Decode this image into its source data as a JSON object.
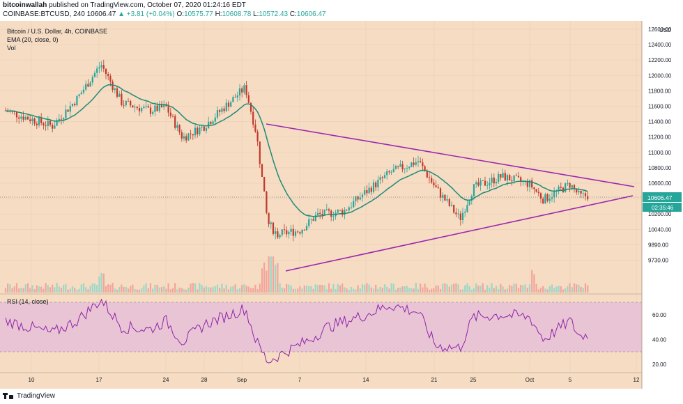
{
  "header": {
    "author": "bitcoinwallah",
    "published": "published on TradingView.com, October 07, 2020 01:24:16 EDT",
    "symbol": "COINBASE:BTCUSD, 240",
    "last": "10606.47",
    "change": "+3.81 (+0.04%)",
    "open_label": "O:",
    "open": "10575.77",
    "high_label": "H:",
    "high": "10608.78",
    "low_label": "L:",
    "low": "10572.43",
    "close_label": "C:",
    "close": "10606.47"
  },
  "legend": {
    "title": "Bitcoin / U.S. Dollar, 4h, COINBASE",
    "ema": "EMA (20, close, 0)",
    "vol": "Vol",
    "rsi": "RSI (14, close)"
  },
  "price_axis": {
    "currency": "USD",
    "ticks": [
      "12600.00",
      "12400.00",
      "12200.00",
      "12000.00",
      "11800.00",
      "11600.00",
      "11400.00",
      "11200.00",
      "11000.00",
      "10800.00",
      "10600.00",
      "10400.00",
      "10200.00",
      "10040.00",
      "9890.00",
      "9730.00"
    ],
    "last_price_label": "10606.47",
    "countdown_label": "02:35:46"
  },
  "rsi_axis": {
    "ticks": [
      "60.00",
      "40.00",
      "20.00"
    ]
  },
  "time_axis": {
    "labels": [
      "10",
      "17",
      "24",
      "28",
      "Sep",
      "7",
      "14",
      "21",
      "25",
      "Oct",
      "5",
      "12"
    ]
  },
  "colors": {
    "background": "#f5dcc3",
    "up": "#26a69a",
    "down": "#c1392b",
    "ema": "#1e8a78",
    "triangle": "#9c27b0",
    "rsi": "#8e24aa",
    "rsi_band": "#e9c4d4"
  },
  "footer": {
    "brand": "TradingView"
  },
  "chart_data": [
    {
      "type": "candlestick",
      "title": "Bitcoin / U.S. Dollar, 4h, COINBASE",
      "ylabel": "USD",
      "ylim": [
        9650,
        12750
      ],
      "indicators": [
        "EMA (20, close, 0)",
        "Vol"
      ],
      "annotations": [
        "symmetrical triangle: upper trendline ~11470 (Sep 2) to ~10730 (Oct 8)",
        "symmetrical triangle: lower trendline ~9830 (Sep 5) to ~10620 (Oct 8)"
      ],
      "trend_points": [
        {
          "x": "Aug 9",
          "close": 11700
        },
        {
          "x": "Aug 12",
          "close": 11500
        },
        {
          "x": "Aug 14",
          "close": 11850
        },
        {
          "x": "Aug 17",
          "close": 12300
        },
        {
          "x": "Aug 19",
          "close": 11800
        },
        {
          "x": "Aug 22",
          "close": 11700
        },
        {
          "x": "Aug 24",
          "close": 11750
        },
        {
          "x": "Aug 26",
          "close": 11350
        },
        {
          "x": "Aug 28",
          "close": 11500
        },
        {
          "x": "Sep 1",
          "close": 12000
        },
        {
          "x": "Sep 2",
          "close": 11400
        },
        {
          "x": "Sep 4",
          "close": 10250
        },
        {
          "x": "Sep 5",
          "close": 10100
        },
        {
          "x": "Sep 7",
          "close": 10150
        },
        {
          "x": "Sep 9",
          "close": 10350
        },
        {
          "x": "Sep 12",
          "close": 10400
        },
        {
          "x": "Sep 14",
          "close": 10650
        },
        {
          "x": "Sep 17",
          "close": 10900
        },
        {
          "x": "Sep 19",
          "close": 11050
        },
        {
          "x": "Sep 21",
          "close": 10700
        },
        {
          "x": "Sep 23",
          "close": 10300
        },
        {
          "x": "Sep 25",
          "close": 10700
        },
        {
          "x": "Sep 28",
          "close": 10850
        },
        {
          "x": "Oct 1",
          "close": 10750
        },
        {
          "x": "Oct 3",
          "close": 10550
        },
        {
          "x": "Oct 5",
          "close": 10750
        },
        {
          "x": "Oct 6",
          "close": 10590
        },
        {
          "x": "Oct 7",
          "close": 10606.47
        }
      ]
    },
    {
      "type": "line",
      "title": "RSI (14, close)",
      "ylim": [
        10,
        80
      ],
      "band": [
        30,
        70
      ],
      "points": [
        {
          "x": "Aug 9",
          "y": 55
        },
        {
          "x": "Aug 12",
          "y": 45
        },
        {
          "x": "Aug 14",
          "y": 55
        },
        {
          "x": "Aug 17",
          "y": 72
        },
        {
          "x": "Aug 19",
          "y": 50
        },
        {
          "x": "Aug 22",
          "y": 48
        },
        {
          "x": "Aug 24",
          "y": 55
        },
        {
          "x": "Aug 26",
          "y": 38
        },
        {
          "x": "Aug 28",
          "y": 52
        },
        {
          "x": "Sep 1",
          "y": 65
        },
        {
          "x": "Sep 2",
          "y": 38
        },
        {
          "x": "Sep 4",
          "y": 22
        },
        {
          "x": "Sep 6",
          "y": 30
        },
        {
          "x": "Sep 8",
          "y": 40
        },
        {
          "x": "Sep 10",
          "y": 50
        },
        {
          "x": "Sep 14",
          "y": 60
        },
        {
          "x": "Sep 17",
          "y": 68
        },
        {
          "x": "Sep 19",
          "y": 62
        },
        {
          "x": "Sep 21",
          "y": 35
        },
        {
          "x": "Sep 23",
          "y": 33
        },
        {
          "x": "Sep 25",
          "y": 58
        },
        {
          "x": "Sep 28",
          "y": 60
        },
        {
          "x": "Oct 1",
          "y": 58
        },
        {
          "x": "Oct 3",
          "y": 40
        },
        {
          "x": "Oct 5",
          "y": 55
        },
        {
          "x": "Oct 6",
          "y": 42
        },
        {
          "x": "Oct 7",
          "y": 45
        }
      ]
    }
  ]
}
